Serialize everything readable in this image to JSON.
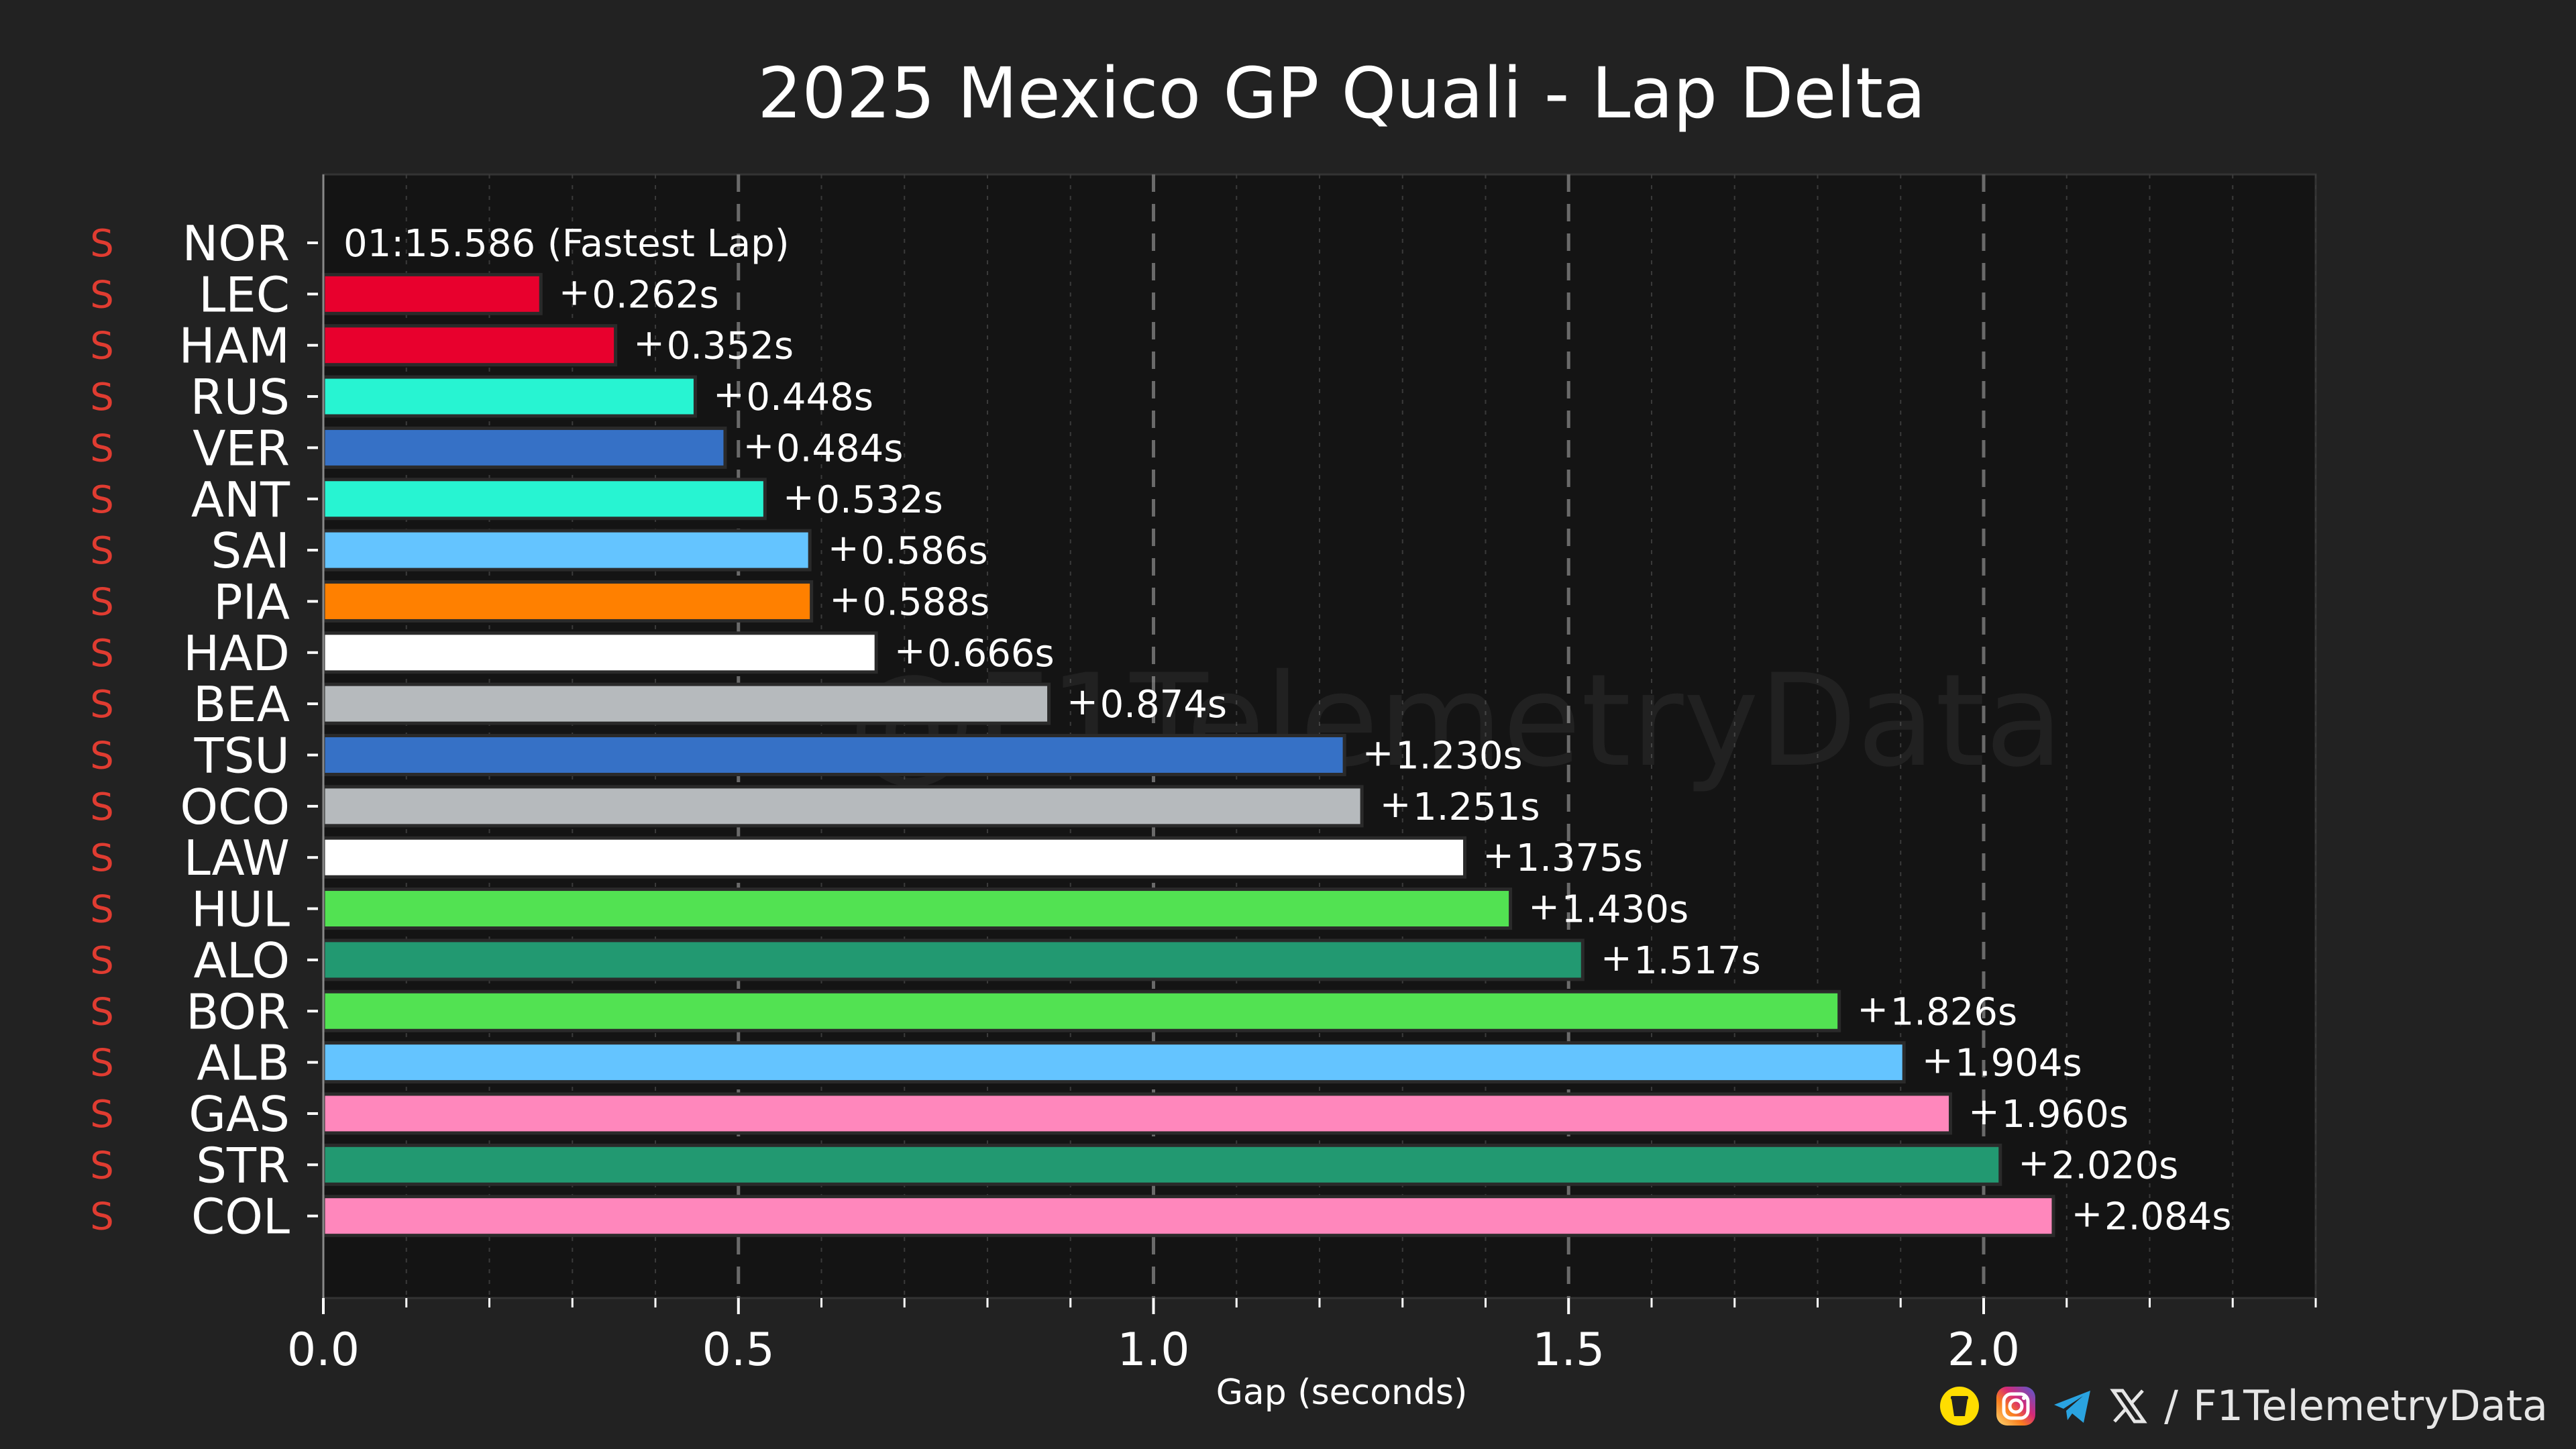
{
  "chart_data": {
    "type": "bar",
    "orientation": "horizontal",
    "title": "2025 Mexico GP Quali - Lap Delta",
    "xlabel": "Gap (seconds)",
    "ylabel": "",
    "xlim": [
      0,
      2.4
    ],
    "xticks": [
      "0.0",
      "0.5",
      "1.0",
      "1.5",
      "2.0"
    ],
    "xtick_values": [
      0,
      0.5,
      1.0,
      1.5,
      2.0
    ],
    "grid": "vertical dashed at major ticks",
    "fastest_label": "01:15.586 (Fastest Lap)",
    "delta_prefix": "+",
    "watermark": "@F1TelemetryData",
    "drivers": [
      {
        "code": "NOR",
        "compound": "S",
        "delta": 0.0,
        "label": "01:15.586 (Fastest Lap)",
        "color": "#FF8000"
      },
      {
        "code": "LEC",
        "compound": "S",
        "delta": 0.262,
        "label": "0.262s",
        "color": "#E8002D"
      },
      {
        "code": "HAM",
        "compound": "S",
        "delta": 0.352,
        "label": "0.352s",
        "color": "#E8002D"
      },
      {
        "code": "RUS",
        "compound": "S",
        "delta": 0.448,
        "label": "0.448s",
        "color": "#27F4D2"
      },
      {
        "code": "VER",
        "compound": "S",
        "delta": 0.484,
        "label": "0.484s",
        "color": "#3671C6"
      },
      {
        "code": "ANT",
        "compound": "S",
        "delta": 0.532,
        "label": "0.532s",
        "color": "#27F4D2"
      },
      {
        "code": "SAI",
        "compound": "S",
        "delta": 0.586,
        "label": "0.586s",
        "color": "#64C4FF"
      },
      {
        "code": "PIA",
        "compound": "S",
        "delta": 0.588,
        "label": "0.588s",
        "color": "#FF8000"
      },
      {
        "code": "HAD",
        "compound": "S",
        "delta": 0.666,
        "label": "0.666s",
        "color": "#FFFFFF"
      },
      {
        "code": "BEA",
        "compound": "S",
        "delta": 0.874,
        "label": "0.874s",
        "color": "#B6BABD"
      },
      {
        "code": "TSU",
        "compound": "S",
        "delta": 1.23,
        "label": "1.230s",
        "color": "#3671C6"
      },
      {
        "code": "OCO",
        "compound": "S",
        "delta": 1.251,
        "label": "1.251s",
        "color": "#B6BABD"
      },
      {
        "code": "LAW",
        "compound": "S",
        "delta": 1.375,
        "label": "1.375s",
        "color": "#FFFFFF"
      },
      {
        "code": "HUL",
        "compound": "S",
        "delta": 1.43,
        "label": "1.430s",
        "color": "#52E252"
      },
      {
        "code": "ALO",
        "compound": "S",
        "delta": 1.517,
        "label": "1.517s",
        "color": "#229971"
      },
      {
        "code": "BOR",
        "compound": "S",
        "delta": 1.826,
        "label": "1.826s",
        "color": "#52E252"
      },
      {
        "code": "ALB",
        "compound": "S",
        "delta": 1.904,
        "label": "1.904s",
        "color": "#64C4FF"
      },
      {
        "code": "GAS",
        "compound": "S",
        "delta": 1.96,
        "label": "1.960s",
        "color": "#FF87BC"
      },
      {
        "code": "STR",
        "compound": "S",
        "delta": 2.02,
        "label": "2.020s",
        "color": "#229971"
      },
      {
        "code": "COL",
        "compound": "S",
        "delta": 2.084,
        "label": "2.084s",
        "color": "#FF87BC"
      }
    ]
  },
  "footer": {
    "separator": "/",
    "handle": "F1TelemetryData",
    "icons": [
      "coffee-icon",
      "instagram-icon",
      "telegram-icon",
      "x-icon"
    ]
  },
  "colors": {
    "background": "#222222",
    "plot_background": "#141414",
    "grid": "#5a5a5a",
    "compound_soft": "#e03c31",
    "bar_edge": "#2a2a2a"
  }
}
